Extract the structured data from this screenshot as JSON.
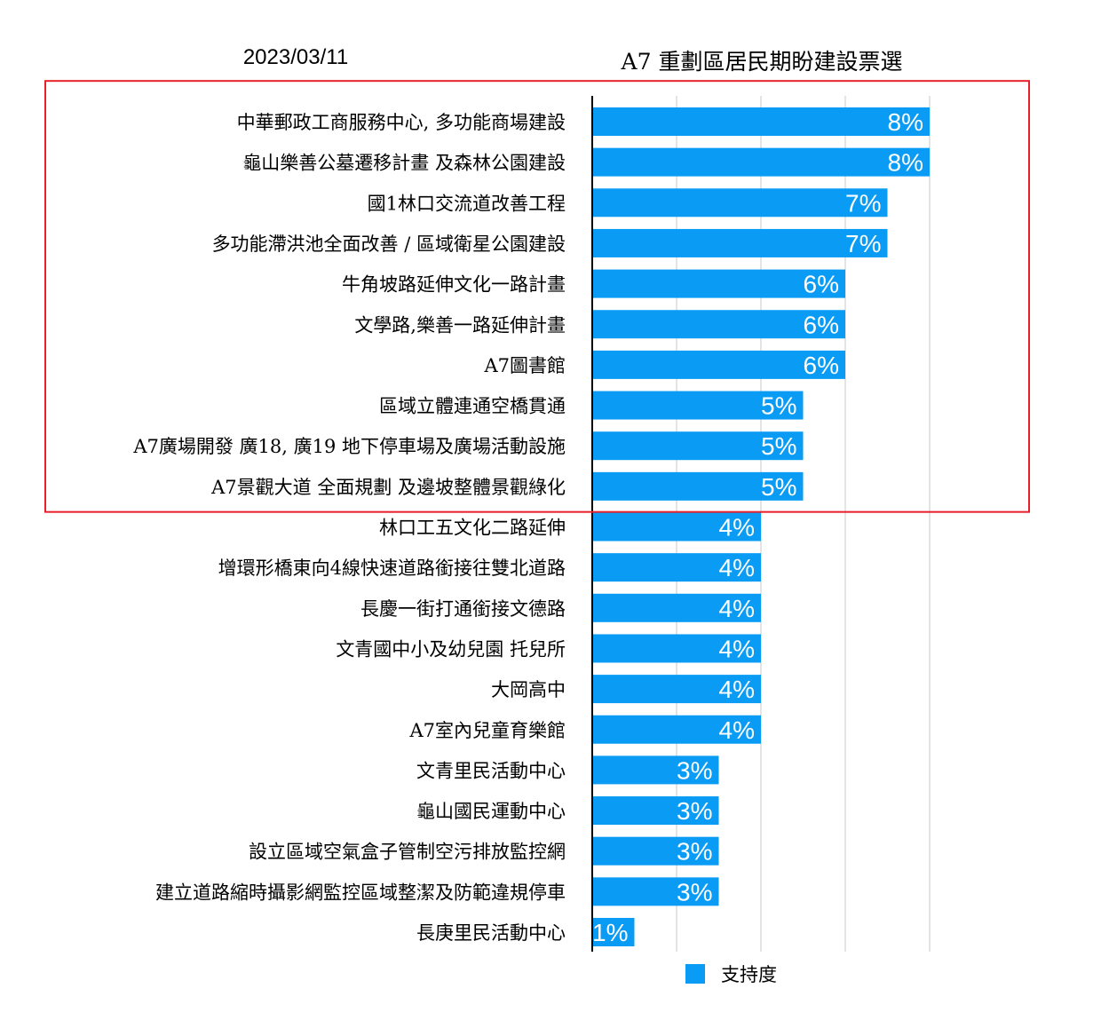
{
  "date": "2023/03/11",
  "chart_data": {
    "type": "bar",
    "orientation": "horizontal",
    "title": "A7 重劃區居民期盼建設票選",
    "categories": [
      "中華郵政工商服務中心, 多功能商場建設",
      "龜山樂善公墓遷移計畫 及森林公園建設",
      "國1林口交流道改善工程",
      "多功能滯洪池全面改善 / 區域衛星公園建設",
      "牛角坡路延伸文化一路計畫",
      "文學路,樂善一路延伸計畫",
      "A7圖書館",
      "區域立體連通空橋貫通",
      "A7廣場開發 廣18, 廣19 地下停車場及廣場活動設施",
      "A7景觀大道 全面規劃 及邊坡整體景觀綠化",
      "林口工五文化二路延伸",
      "增環形橋東向4線快速道路銜接往雙北道路",
      "長慶一街打通銜接文德路",
      "文青國中小及幼兒園  托兒所",
      "大岡高中",
      "A7室內兒童育樂館",
      "文青里民活動中心",
      "龜山國民運動中心",
      "設立區域空氣盒子管制空污排放監控網",
      "建立道路縮時攝影網監控區域整潔及防範違規停車",
      "長庚里民活動中心"
    ],
    "series": [
      {
        "name": "支持度",
        "values": [
          8,
          8,
          7,
          7,
          6,
          6,
          6,
          5,
          5,
          5,
          4,
          4,
          4,
          4,
          4,
          4,
          3,
          3,
          3,
          3,
          1
        ],
        "labels": [
          "8%",
          "8%",
          "7%",
          "7%",
          "6%",
          "6%",
          "6%",
          "5%",
          "5%",
          "5%",
          "4%",
          "4%",
          "4%",
          "4%",
          "4%",
          "4%",
          "3%",
          "3%",
          "3%",
          "3%",
          "1%"
        ]
      }
    ],
    "xlim": [
      0,
      8
    ],
    "grid": true,
    "legend": "bottom",
    "highlight_rows": [
      0,
      9
    ],
    "colors": {
      "bar": "#0a9cf5",
      "highlight": "#e8202a",
      "grid": "#c8c8c8",
      "axis": "#000000"
    }
  }
}
